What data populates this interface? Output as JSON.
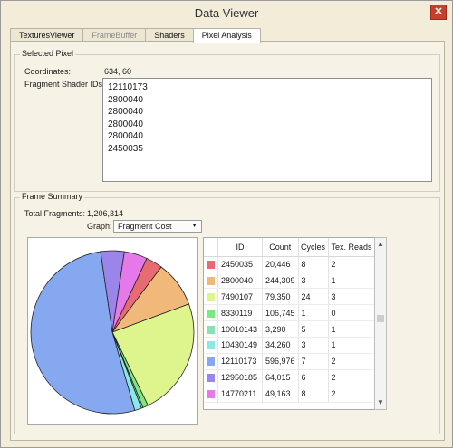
{
  "window": {
    "title": "Data Viewer"
  },
  "tabs": [
    {
      "label": "TexturesViewer",
      "state": "normal"
    },
    {
      "label": "FrameBuffer",
      "state": "disabled"
    },
    {
      "label": "Shaders",
      "state": "normal"
    },
    {
      "label": "Pixel Analysis",
      "state": "active"
    }
  ],
  "selected_pixel": {
    "group_title": "Selected Pixel",
    "coordinates_label": "Coordinates:",
    "coordinates_value": "634, 60",
    "shader_ids_label": "Fragment Shader IDs:",
    "shader_ids": [
      "12110173",
      "2800040",
      "2800040",
      "2800040",
      "2800040",
      "2450035"
    ]
  },
  "frame_summary": {
    "group_title": "Frame Summary",
    "total_label": "Total Fragments:",
    "total_value": "1,206,314",
    "graph_label": "Graph:",
    "graph_value": "Fragment Cost"
  },
  "table": {
    "columns": [
      "ID",
      "Count",
      "Cycles",
      "Tex. Reads"
    ],
    "rows": [
      {
        "color": "#e86a72",
        "id": "2450035",
        "count": "20,446",
        "cycles": "8",
        "tex": "2"
      },
      {
        "color": "#f0b97a",
        "id": "2800040",
        "count": "244,309",
        "cycles": "3",
        "tex": "1"
      },
      {
        "color": "#ddf58c",
        "id": "7490107",
        "count": "79,350",
        "cycles": "24",
        "tex": "3"
      },
      {
        "color": "#7ee87e",
        "id": "8330119",
        "count": "106,745",
        "cycles": "1",
        "tex": "0"
      },
      {
        "color": "#88e3b3",
        "id": "10010143",
        "count": "3,290",
        "cycles": "5",
        "tex": "1"
      },
      {
        "color": "#8ae8e8",
        "id": "10430149",
        "count": "34,260",
        "cycles": "3",
        "tex": "1"
      },
      {
        "color": "#85a8f0",
        "id": "12110173",
        "count": "596,976",
        "cycles": "7",
        "tex": "2"
      },
      {
        "color": "#9b85ea",
        "id": "12950185",
        "count": "64,015",
        "cycles": "6",
        "tex": "2"
      },
      {
        "color": "#e579ea",
        "id": "14770211",
        "count": "49,163",
        "cycles": "8",
        "tex": "2"
      }
    ]
  },
  "chart_data": {
    "type": "pie",
    "start_angle_deg": -65,
    "slices": [
      {
        "label": "2450035",
        "value": 3.1,
        "color": "#e86a72"
      },
      {
        "label": "2800040",
        "value": 8.6,
        "color": "#f0b97a"
      },
      {
        "label": "7490107",
        "value": 22.0,
        "color": "#ddf58c"
      },
      {
        "label": "8330119",
        "value": 1.0,
        "color": "#7ee87e"
      },
      {
        "label": "10010143",
        "value": 0.3,
        "color": "#88e3b3"
      },
      {
        "label": "10430149",
        "value": 1.3,
        "color": "#8ae8e8"
      },
      {
        "label": "12110173",
        "value": 49.0,
        "color": "#85a8f0"
      },
      {
        "label": "12950185",
        "value": 4.4,
        "color": "#9b85ea"
      },
      {
        "label": "14770211",
        "value": 4.3,
        "color": "#e579ea"
      }
    ]
  },
  "icons": {
    "close": "close-icon",
    "dropdown": "chevron-down-icon",
    "scroll_up": "scroll-up-icon",
    "scroll_down": "scroll-down-icon"
  },
  "colors": {
    "window_bg": "#f2ecd9",
    "close_red": "#c8402b"
  }
}
